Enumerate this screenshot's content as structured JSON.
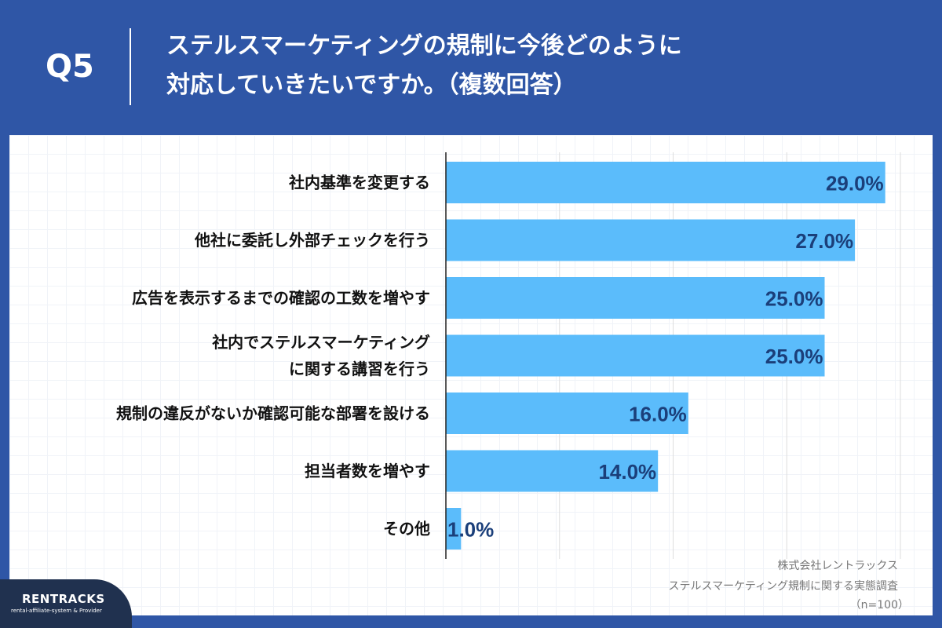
{
  "header": {
    "q_label": "Q5",
    "title_lines": [
      "ステルスマーケティングの規制に今後どのように",
      "対応していきたいですか。（複数回答）"
    ]
  },
  "chart_data": {
    "type": "bar",
    "orientation": "horizontal",
    "categories": [
      [
        "社内基準を変更する"
      ],
      [
        "他社に委託し外部チェックを行う"
      ],
      [
        "広告を表示するまでの確認の工数を増やす"
      ],
      [
        "社内でステルスマーケティング",
        "に関する講習を行う"
      ],
      [
        "規制の違反がないか確認可能な部署を設ける"
      ],
      [
        "担当者数を増やす"
      ],
      [
        "その他"
      ]
    ],
    "values": [
      29.0,
      27.0,
      25.0,
      25.0,
      16.0,
      14.0,
      1.0
    ],
    "value_labels": [
      "29.0%",
      "27.0%",
      "25.0%",
      "25.0%",
      "16.0%",
      "14.0%",
      "1.0%"
    ],
    "xlim": [
      0,
      30
    ],
    "grid": true,
    "bar_color": "#5bbcfb",
    "label_color": "#1b3f7a"
  },
  "notes": {
    "source_company": "株式会社レントラックス",
    "survey_name": "ステルスマーケティング規制に関する実態調査",
    "sample": "（n=100）"
  },
  "logo": {
    "name": "RENTRACKS",
    "tagline": "rental-affiliate-system & Provider"
  },
  "colors": {
    "background": "#2f56a6",
    "panel": "#ffffff",
    "logo_bg": "#20314f"
  }
}
